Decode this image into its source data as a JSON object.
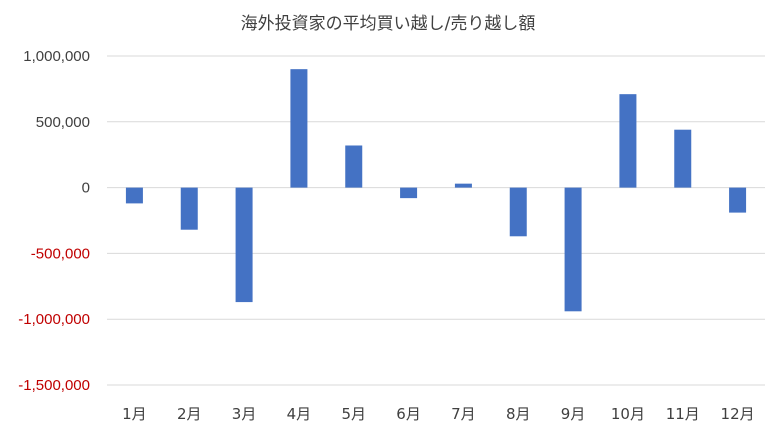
{
  "chart_data": {
    "type": "bar",
    "title": "海外投資家の平均買い越し/売り越し額",
    "categories": [
      "1月",
      "2月",
      "3月",
      "4月",
      "5月",
      "6月",
      "7月",
      "8月",
      "9月",
      "10月",
      "11月",
      "12月"
    ],
    "values": [
      -120000,
      -320000,
      -870000,
      900000,
      320000,
      -80000,
      30000,
      -370000,
      -940000,
      710000,
      440000,
      -190000
    ],
    "ylim": [
      -1500000,
      1000000
    ],
    "yticks": [
      1000000,
      500000,
      0,
      -500000,
      -1000000,
      -1500000
    ],
    "ytick_labels": [
      "1,000,000",
      "500,000",
      "0",
      "-500,000",
      "-1,000,000",
      "-1,500,000"
    ],
    "grid": true,
    "legend": "none",
    "colors": {
      "bar": "#4472c4",
      "positive_tick": "#404040",
      "negative_tick": "#c00000"
    }
  }
}
